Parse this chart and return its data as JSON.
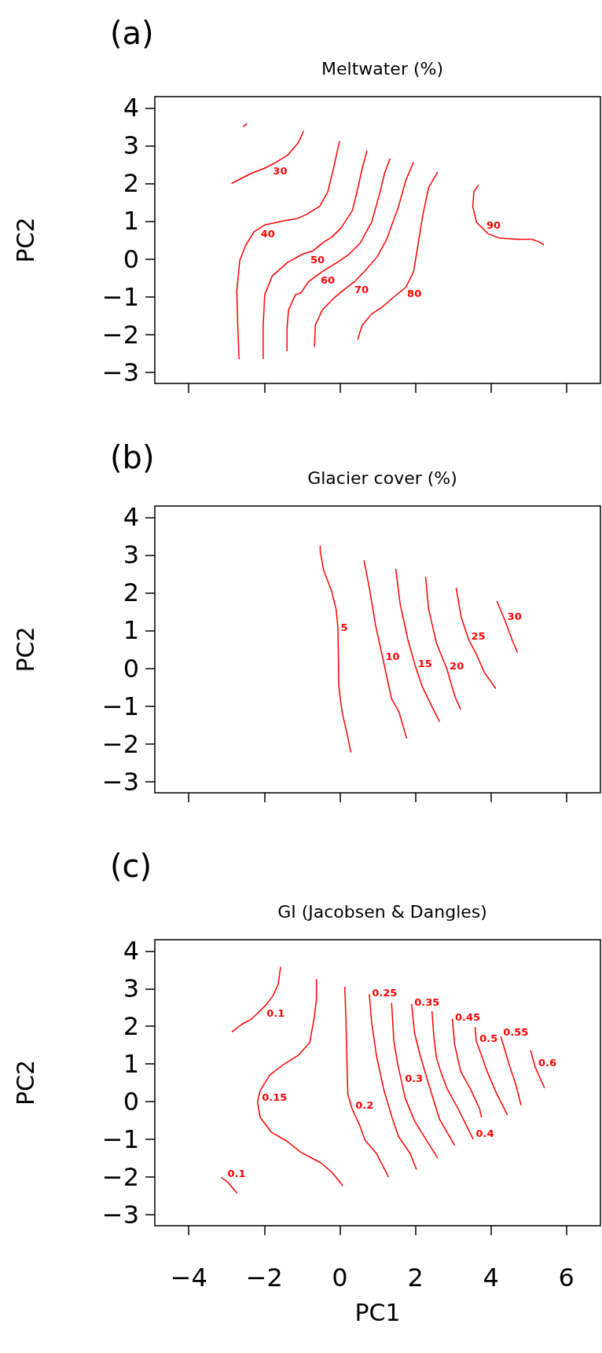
{
  "chart_data": [
    {
      "type": "line",
      "title": "Meltwater (%)",
      "annotations": [
        "(a)"
      ],
      "ylabel": "PC2",
      "xlim": [
        -4.9,
        6.9
      ],
      "ylim": [
        -3.3,
        4.3
      ],
      "xticks": [
        -4,
        -2,
        0,
        2,
        4,
        6
      ],
      "yticks": [
        -3,
        -2,
        -1,
        0,
        1,
        2,
        3,
        4
      ],
      "tick_labels": "y",
      "legend": false,
      "grid": false,
      "series": [
        {
          "color": "#ff0000",
          "x": [
            -2.56,
            -2.46
          ],
          "values": [
            3.5,
            3.59
          ]
        },
        {
          "name": "30",
          "color": "#ff0000",
          "x": [
            -2.87,
            -2.34,
            -2.0,
            -1.71,
            -1.38,
            -1.1,
            -0.96
          ],
          "values": [
            2.0,
            2.27,
            2.4,
            2.55,
            2.75,
            3.08,
            3.39
          ]
        },
        {
          "name": "40",
          "color": "#ff0000",
          "x": [
            -2.67,
            -2.7,
            -2.73,
            -2.65,
            -2.49,
            -2.27,
            -1.99,
            -1.43,
            -1.16,
            -0.88,
            -0.53,
            -0.32,
            -0.17,
            -0.01
          ],
          "values": [
            -2.65,
            -1.87,
            -0.85,
            -0.04,
            0.37,
            0.72,
            0.9,
            1.02,
            1.06,
            1.18,
            1.4,
            1.78,
            2.39,
            3.12
          ]
        },
        {
          "name": "50",
          "color": "#ff0000",
          "x": [
            -2.03,
            -2.03,
            -1.99,
            -1.79,
            -1.38,
            -0.98,
            -0.72,
            -0.42,
            -0.22,
            0.03,
            0.33,
            0.48,
            0.59,
            0.72
          ],
          "values": [
            -2.65,
            -1.76,
            -0.95,
            -0.45,
            -0.09,
            0.13,
            0.21,
            0.45,
            0.57,
            0.82,
            1.28,
            1.89,
            2.39,
            2.87
          ]
        },
        {
          "name": "60",
          "color": "#ff0000",
          "x": [
            -1.4,
            -1.4,
            -1.36,
            -1.18,
            -1.03,
            -0.83,
            -0.47,
            -0.07,
            0.23,
            0.54,
            0.84,
            1.04,
            1.19,
            1.33
          ],
          "values": [
            -2.44,
            -1.87,
            -1.36,
            -0.95,
            -0.9,
            -0.6,
            -0.34,
            -0.09,
            0.11,
            0.42,
            0.97,
            1.68,
            2.29,
            2.66
          ]
        },
        {
          "name": "70",
          "color": "#ff0000",
          "x": [
            -0.67,
            -0.65,
            -0.47,
            -0.17,
            0.13,
            0.39,
            0.69,
            0.99,
            1.24,
            1.55,
            1.75,
            1.95
          ],
          "values": [
            -2.33,
            -1.76,
            -1.36,
            -1.05,
            -0.8,
            -0.6,
            -0.29,
            0.06,
            0.52,
            1.38,
            2.09,
            2.56
          ]
        },
        {
          "name": "80",
          "color": "#ff0000",
          "x": [
            0.47,
            0.59,
            0.84,
            1.14,
            1.44,
            1.75,
            1.95,
            2.05,
            2.2,
            2.35,
            2.59
          ],
          "values": [
            -2.14,
            -1.76,
            -1.46,
            -1.26,
            -1.0,
            -0.75,
            -0.34,
            0.26,
            1.18,
            1.89,
            2.3
          ]
        },
        {
          "name": "90",
          "color": "#ff0000",
          "x": [
            3.67,
            3.55,
            3.52,
            3.62,
            3.92,
            4.23,
            4.67,
            5.08,
            5.28,
            5.4
          ],
          "values": [
            1.96,
            1.78,
            1.38,
            0.97,
            0.67,
            0.55,
            0.52,
            0.52,
            0.45,
            0.37
          ]
        }
      ]
    },
    {
      "type": "line",
      "title": "Glacier cover (%)",
      "annotations": [
        "(b)"
      ],
      "ylabel": "PC2",
      "xlim": [
        -4.9,
        6.9
      ],
      "ylim": [
        -3.3,
        4.3
      ],
      "xticks": [
        -4,
        -2,
        0,
        2,
        4,
        6
      ],
      "yticks": [
        -3,
        -2,
        -1,
        0,
        1,
        2,
        3,
        4
      ],
      "tick_labels": "y",
      "legend": false,
      "grid": false,
      "series": [
        {
          "name": "5",
          "color": "#ff0000",
          "x": [
            -0.52,
            -0.52,
            -0.43,
            -0.22,
            -0.1,
            -0.05,
            -0.04,
            -0.03,
            0.06,
            0.18,
            0.29
          ],
          "values": [
            3.25,
            3.1,
            2.6,
            2.05,
            1.57,
            1.07,
            0.36,
            -0.46,
            -1.17,
            -1.68,
            -2.23
          ]
        },
        {
          "name": "10",
          "color": "#ff0000",
          "x": [
            0.64,
            0.79,
            0.94,
            1.14,
            1.28,
            1.37,
            1.57,
            1.77
          ],
          "values": [
            2.86,
            2.08,
            1.17,
            0.25,
            -0.39,
            -0.81,
            -1.17,
            -1.86
          ]
        },
        {
          "name": "15",
          "color": "#ff0000",
          "x": [
            1.48,
            1.6,
            1.8,
            2.0,
            2.18,
            2.39,
            2.64
          ],
          "values": [
            2.64,
            1.68,
            0.76,
            0.05,
            -0.48,
            -0.92,
            -1.42
          ]
        },
        {
          "name": "20",
          "color": "#ff0000",
          "x": [
            2.27,
            2.35,
            2.56,
            2.84,
            2.95,
            3.06,
            3.2
          ],
          "values": [
            2.42,
            1.57,
            0.66,
            -0.03,
            -0.42,
            -0.78,
            -1.09
          ]
        },
        {
          "name": "25",
          "color": "#ff0000",
          "x": [
            3.08,
            3.21,
            3.41,
            3.62,
            3.82,
            4.13
          ],
          "values": [
            2.13,
            1.37,
            0.76,
            0.36,
            -0.1,
            -0.54
          ]
        },
        {
          "name": "30",
          "color": "#ff0000",
          "x": [
            4.16,
            4.37,
            4.58,
            4.7
          ],
          "values": [
            1.78,
            1.27,
            0.71,
            0.42
          ]
        }
      ]
    },
    {
      "type": "line",
      "title": "GI (Jacobsen & Dangles)",
      "annotations": [
        "(c)"
      ],
      "xlabel": "PC1",
      "ylabel": "PC2",
      "xlim": [
        -4.9,
        6.9
      ],
      "ylim": [
        -3.3,
        4.3
      ],
      "xticks": [
        -4,
        -2,
        0,
        2,
        4,
        6
      ],
      "yticks": [
        -3,
        -2,
        -1,
        0,
        1,
        2,
        3,
        4
      ],
      "legend": false,
      "grid": false,
      "series": [
        {
          "name": "0.1",
          "color": "#ff0000",
          "x": [
            -2.86,
            -2.6,
            -2.33,
            -1.95,
            -1.76,
            -1.63,
            -1.57
          ],
          "values": [
            1.85,
            2.05,
            2.2,
            2.57,
            2.83,
            3.13,
            3.58
          ]
        },
        {
          "name": "0.15",
          "color": "#ff0000",
          "x": [
            -0.62,
            -0.62,
            -0.68,
            -0.8,
            -1.1,
            -1.51,
            -1.86,
            -2.11,
            -2.18,
            -2.11,
            -1.81,
            -1.41,
            -1.03,
            -0.5,
            -0.21,
            0.08
          ],
          "values": [
            3.25,
            2.72,
            2.22,
            1.56,
            1.23,
            0.97,
            0.7,
            0.29,
            -0.01,
            -0.42,
            -0.82,
            -1.05,
            -1.35,
            -1.63,
            -1.88,
            -2.24
          ]
        },
        {
          "name": "0.1",
          "color": "#ff0000",
          "x": [
            -3.14,
            -2.97,
            -2.72
          ],
          "values": [
            -2.02,
            -2.14,
            -2.44
          ]
        },
        {
          "name": "0.2",
          "color": "#ff0000",
          "x": [
            0.13,
            0.16,
            0.18,
            0.21,
            0.33,
            0.52,
            0.67,
            0.97,
            1.29
          ],
          "values": [
            3.05,
            2.22,
            1.41,
            0.19,
            -0.21,
            -0.62,
            -1.03,
            -1.38,
            -2.01
          ]
        },
        {
          "name": "0.25",
          "color": "#ff0000",
          "x": [
            0.78,
            0.84,
            0.97,
            1.17,
            1.38,
            1.55,
            1.86,
            2.03
          ],
          "values": [
            2.85,
            2.12,
            1.21,
            0.29,
            -0.42,
            -0.92,
            -1.38,
            -1.81
          ]
        },
        {
          "name": "0.3",
          "color": "#ff0000",
          "x": [
            1.37,
            1.43,
            1.53,
            1.63,
            1.73,
            1.98,
            2.29,
            2.59
          ],
          "values": [
            2.62,
            1.61,
            1.0,
            0.55,
            0.09,
            -0.52,
            -1.02,
            -1.5
          ]
        },
        {
          "name": "0.35",
          "color": "#ff0000",
          "x": [
            1.9,
            1.98,
            2.13,
            2.34,
            2.64,
            3.04
          ],
          "values": [
            2.59,
            1.81,
            1.21,
            0.5,
            -0.47,
            -1.17
          ]
        },
        {
          "name": "0.4",
          "color": "#ff0000",
          "x": [
            2.44,
            2.49,
            2.56,
            2.67,
            2.84,
            3.14,
            3.53
          ],
          "values": [
            2.4,
            1.71,
            1.15,
            0.8,
            0.34,
            -0.21,
            -1.0
          ]
        },
        {
          "name": "0.45",
          "color": "#ff0000",
          "x": [
            2.98,
            3.04,
            3.2,
            3.47,
            3.7,
            3.75
          ],
          "values": [
            2.2,
            1.51,
            0.8,
            0.31,
            -0.19,
            -0.42
          ]
        },
        {
          "name": "0.5",
          "color": "#ff0000",
          "x": [
            3.58,
            3.61,
            3.75,
            3.9,
            4.16,
            4.44
          ],
          "values": [
            1.98,
            1.61,
            1.23,
            0.8,
            0.19,
            -0.36
          ]
        },
        {
          "name": "0.55",
          "color": "#ff0000",
          "x": [
            4.26,
            4.51,
            4.66,
            4.8
          ],
          "values": [
            1.73,
            0.9,
            0.45,
            -0.1
          ]
        },
        {
          "name": "0.6",
          "color": "#ff0000",
          "x": [
            5.05,
            5.17,
            5.42
          ],
          "values": [
            1.36,
            0.92,
            0.36
          ]
        }
      ]
    }
  ]
}
